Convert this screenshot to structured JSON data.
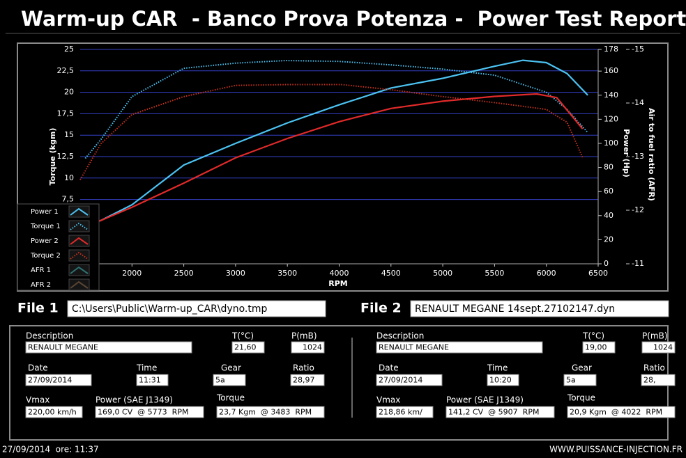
{
  "title": "Warm-up CAR  - Banco Prova Potenza -  Power Test Report",
  "chart_data": {
    "type": "line",
    "x_label": "RPM",
    "y_label": "Torque (kgm)",
    "y2_label": "Power (Hp)",
    "y3_label": "Air to fuel ratio (AFR)",
    "xlim": [
      1500,
      6500
    ],
    "xticks": [
      2000,
      2500,
      3000,
      3500,
      4000,
      4500,
      5000,
      5500,
      6000,
      6500
    ],
    "ylim": [
      0,
      25
    ],
    "yticks": [
      {
        "value": 7.5,
        "label": "7,5"
      },
      10,
      {
        "value": 12.5,
        "label": "12,5"
      },
      15,
      {
        "value": 17.5,
        "label": "17,5"
      },
      20,
      {
        "value": 22.5,
        "label": "22,5"
      },
      25
    ],
    "y2lim": [
      0,
      178
    ],
    "y2ticks": [
      0,
      20,
      40,
      60,
      80,
      100,
      120,
      140,
      160,
      178
    ],
    "y3lim": [
      -11,
      -15
    ],
    "y3ticks": [
      -11,
      -12,
      -13,
      -14,
      -15
    ],
    "grid": true,
    "legend": "bottom-left",
    "series": [
      {
        "name": "Power 1",
        "color": "#4cc3f2",
        "style": "solid",
        "axis": "y2",
        "x": [
          1600,
          1700,
          2000,
          2500,
          3000,
          3500,
          4000,
          4500,
          5000,
          5500,
          5773,
          6000,
          6200,
          6400
        ],
        "values": [
          33,
          36,
          49,
          82,
          100,
          117,
          132,
          146,
          154,
          164,
          169,
          167,
          158,
          140
        ]
      },
      {
        "name": "Torque 1",
        "color": "#4cc3f2",
        "style": "dotted",
        "x": [
          1550,
          1700,
          2000,
          2500,
          3000,
          3483,
          4000,
          4500,
          5000,
          5500,
          6000,
          6200,
          6400
        ],
        "values": [
          12.3,
          14.5,
          19.5,
          22.8,
          23.4,
          23.7,
          23.6,
          23.2,
          22.7,
          22.0,
          20.0,
          18.0,
          15.3
        ]
      },
      {
        "name": "Power 2",
        "color": "#e22a2a",
        "style": "solid",
        "axis": "y2",
        "x": [
          1600,
          1700,
          2000,
          2500,
          3000,
          3500,
          4000,
          4500,
          5000,
          5500,
          5907,
          6100,
          6350
        ],
        "values": [
          33,
          36,
          47,
          67,
          88,
          104,
          118,
          129,
          135,
          139,
          141,
          138,
          112
        ]
      },
      {
        "name": "Torque 2",
        "color": "#c8321e",
        "style": "dotted",
        "x": [
          1500,
          1700,
          2000,
          2500,
          3000,
          3500,
          4022,
          4500,
          5000,
          5500,
          6000,
          6200,
          6350
        ],
        "values": [
          9.8,
          14.0,
          17.4,
          19.5,
          20.8,
          20.9,
          20.9,
          20.3,
          19.5,
          18.8,
          18.0,
          16.5,
          12.4
        ]
      }
    ],
    "legend_extra": [
      {
        "name": "AFR 1",
        "color": "#2e7272"
      },
      {
        "name": "AFR 2",
        "color": "#5a4634"
      }
    ]
  },
  "files": [
    {
      "label": "File 1",
      "path": "C:\\Users\\Public\\Warm-up_CAR\\dyno.tmp"
    },
    {
      "label": "File 2",
      "path": "RENAULT MEGANE 14sept.27102147.dyn"
    }
  ],
  "field_labels": {
    "description": "Description",
    "temp": "T(°C)",
    "pressure": "P(mB)",
    "date": "Date",
    "time": "Time",
    "gear": "Gear",
    "ratio": "Ratio",
    "vmax": "Vmax",
    "power": "Power (SAE J1349)",
    "torque": "Torque"
  },
  "panels": [
    {
      "description": "RENAULT MEGANE",
      "temp": "21,60",
      "pressure": "1024",
      "date": "27/09/2014",
      "time": "11:31",
      "gear": "5a",
      "ratio": "28,97",
      "vmax": "220,00 km/h",
      "power": "169,0 CV  @ 5773  RPM",
      "torque": "23,7 Kgm  @ 3483  RPM"
    },
    {
      "description": "RENAULT MEGANE",
      "temp": "19,00",
      "pressure": "1024",
      "date": "27/09/2014",
      "time": "10:20",
      "gear": "5a",
      "ratio": "28,",
      "vmax": "218,86 km/",
      "power": "141,2 CV  @ 5907  RPM",
      "torque": "20,9 Kgm  @ 4022  RPM"
    }
  ],
  "footer": {
    "timestamp": "27/09/2014  ore: 11:37",
    "website": "WWW.PUISSANCE-INJECTION.FR"
  }
}
